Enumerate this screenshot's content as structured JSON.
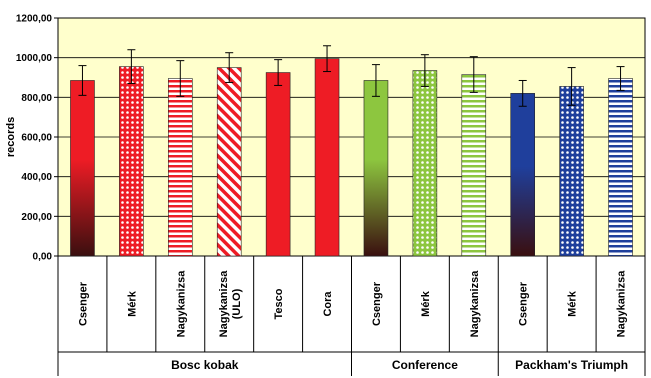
{
  "chart_data": {
    "type": "bar",
    "ylabel": "records",
    "ylim": [
      0,
      1200
    ],
    "yticks": [
      "0,00",
      "200,00",
      "400,00",
      "600,00",
      "800,00",
      "1000,00",
      "1200,00"
    ],
    "grid": true,
    "plot_background": "#FFFFCC",
    "groups": [
      {
        "name": "Bosc kobak",
        "bars": [
          {
            "label": "Csenger",
            "value": 885,
            "error": 75,
            "color": "#EE1C25",
            "pattern": "gradient-dark"
          },
          {
            "label": "Mérk",
            "value": 955,
            "error": 85,
            "color": "#EE1C25",
            "pattern": "dots"
          },
          {
            "label": "Nagykanizsa",
            "value": 895,
            "error": 90,
            "color": "#EE1C25",
            "pattern": "hstripes"
          },
          {
            "label": "Nagykanizsa (ULO)",
            "value": 950,
            "error": 75,
            "color": "#EE1C25",
            "pattern": "dstripes"
          },
          {
            "label": "Tesco",
            "value": 925,
            "error": 65,
            "color": "#EE1C25",
            "pattern": "solid"
          },
          {
            "label": "Cora",
            "value": 995,
            "error": 65,
            "color": "#EE1C25",
            "pattern": "solid"
          }
        ]
      },
      {
        "name": "Conference",
        "bars": [
          {
            "label": "Csenger",
            "value": 885,
            "error": 80,
            "color": "#8DC63F",
            "pattern": "gradient-dark"
          },
          {
            "label": "Mérk",
            "value": 935,
            "error": 80,
            "color": "#8DC63F",
            "pattern": "dots"
          },
          {
            "label": "Nagykanizsa",
            "value": 915,
            "error": 90,
            "color": "#8DC63F",
            "pattern": "hstripes"
          }
        ]
      },
      {
        "name": "Packham's Triumph",
        "bars": [
          {
            "label": "Csenger",
            "value": 820,
            "error": 65,
            "color": "#1F3F9C",
            "pattern": "gradient-dark"
          },
          {
            "label": "Mérk",
            "value": 855,
            "error": 95,
            "color": "#1F3F9C",
            "pattern": "dots"
          },
          {
            "label": "Nagykanizsa",
            "value": 895,
            "error": 60,
            "color": "#1F3F9C",
            "pattern": "hstripes"
          }
        ]
      }
    ]
  }
}
